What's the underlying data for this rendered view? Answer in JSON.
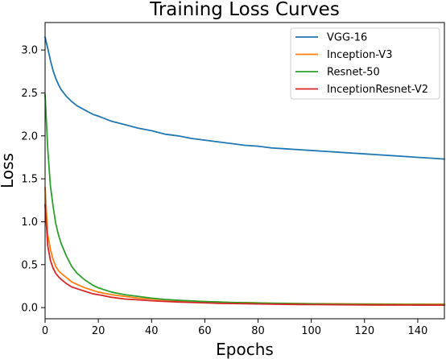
{
  "chart_data": {
    "type": "line",
    "title": "Training Loss Curves",
    "xlabel": "Epochs",
    "ylabel": "Loss",
    "xlim": [
      0,
      150
    ],
    "ylim": [
      -0.13,
      3.32
    ],
    "xticks": [
      0,
      20,
      40,
      60,
      80,
      100,
      120,
      140
    ],
    "xtick_labels": [
      "0",
      "20",
      "40",
      "60",
      "80",
      "100",
      "120",
      "140"
    ],
    "yticks": [
      0.0,
      0.5,
      1.0,
      1.5,
      2.0,
      2.5,
      3.0
    ],
    "ytick_labels": [
      "0.0",
      "0.5",
      "1.0",
      "1.5",
      "2.0",
      "2.5",
      "3.0"
    ],
    "grid": false,
    "legend_position": "top-right",
    "series": [
      {
        "name": "VGG-16",
        "color": "#1f77b4",
        "x": [
          0,
          1,
          2,
          3,
          4,
          5,
          6,
          8,
          10,
          12,
          15,
          18,
          20,
          25,
          30,
          35,
          40,
          45,
          50,
          55,
          60,
          65,
          70,
          75,
          80,
          85,
          90,
          95,
          100,
          105,
          110,
          115,
          120,
          125,
          130,
          135,
          140,
          145,
          150
        ],
        "y": [
          3.15,
          3.02,
          2.88,
          2.76,
          2.67,
          2.6,
          2.54,
          2.46,
          2.4,
          2.35,
          2.3,
          2.25,
          2.23,
          2.17,
          2.13,
          2.09,
          2.06,
          2.02,
          2.0,
          1.97,
          1.95,
          1.93,
          1.91,
          1.89,
          1.88,
          1.86,
          1.85,
          1.84,
          1.83,
          1.82,
          1.81,
          1.8,
          1.79,
          1.78,
          1.77,
          1.76,
          1.75,
          1.74,
          1.73
        ]
      },
      {
        "name": "Inception-V3",
        "color": "#ff7f0e",
        "x": [
          0,
          1,
          2,
          3,
          4,
          5,
          6,
          8,
          10,
          12,
          15,
          18,
          20,
          25,
          30,
          35,
          40,
          45,
          50,
          55,
          60,
          65,
          70,
          75,
          80,
          85,
          90,
          95,
          100,
          105,
          110,
          115,
          120,
          125,
          130,
          135,
          140,
          145,
          150
        ],
        "y": [
          1.4,
          0.85,
          0.68,
          0.56,
          0.48,
          0.43,
          0.4,
          0.35,
          0.3,
          0.27,
          0.23,
          0.2,
          0.18,
          0.15,
          0.13,
          0.11,
          0.1,
          0.09,
          0.08,
          0.075,
          0.07,
          0.065,
          0.06,
          0.058,
          0.055,
          0.052,
          0.05,
          0.048,
          0.046,
          0.045,
          0.044,
          0.043,
          0.042,
          0.042,
          0.041,
          0.04,
          0.04,
          0.04,
          0.04
        ]
      },
      {
        "name": "Resnet-50",
        "color": "#2ca02c",
        "x": [
          0,
          1,
          2,
          3,
          4,
          5,
          6,
          8,
          10,
          12,
          15,
          18,
          20,
          25,
          30,
          35,
          40,
          45,
          50,
          55,
          60,
          65,
          70,
          75,
          80,
          85,
          90,
          95,
          100,
          105,
          110,
          115,
          120,
          125,
          130,
          135,
          140,
          145,
          150
        ],
        "y": [
          2.48,
          1.85,
          1.42,
          1.18,
          0.98,
          0.85,
          0.75,
          0.6,
          0.48,
          0.4,
          0.32,
          0.26,
          0.23,
          0.18,
          0.15,
          0.13,
          0.11,
          0.095,
          0.085,
          0.078,
          0.07,
          0.065,
          0.06,
          0.057,
          0.054,
          0.05,
          0.048,
          0.046,
          0.044,
          0.042,
          0.04,
          0.039,
          0.038,
          0.037,
          0.036,
          0.035,
          0.035,
          0.034,
          0.034
        ]
      },
      {
        "name": "InceptionResnet-V2",
        "color": "#d62728",
        "x": [
          0,
          1,
          2,
          3,
          4,
          5,
          6,
          8,
          10,
          12,
          15,
          18,
          20,
          25,
          30,
          35,
          40,
          45,
          50,
          55,
          60,
          65,
          70,
          75,
          80,
          85,
          90,
          95,
          100,
          105,
          110,
          115,
          120,
          125,
          130,
          135,
          140,
          145,
          150
        ],
        "y": [
          1.2,
          0.72,
          0.55,
          0.46,
          0.4,
          0.36,
          0.33,
          0.28,
          0.24,
          0.22,
          0.19,
          0.16,
          0.15,
          0.12,
          0.1,
          0.09,
          0.08,
          0.072,
          0.065,
          0.06,
          0.055,
          0.05,
          0.047,
          0.045,
          0.042,
          0.04,
          0.038,
          0.036,
          0.035,
          0.034,
          0.033,
          0.032,
          0.031,
          0.03,
          0.03,
          0.03,
          0.029,
          0.029,
          0.028
        ]
      }
    ]
  }
}
